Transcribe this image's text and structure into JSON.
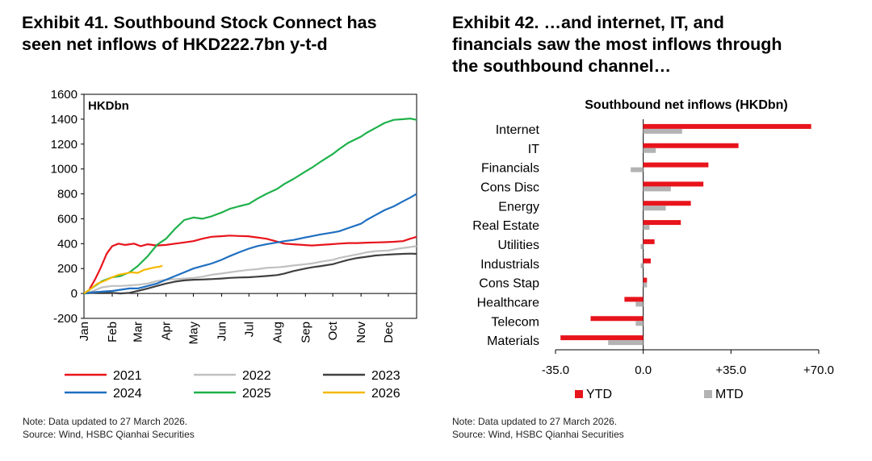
{
  "exhibit41": {
    "title_lines": [
      "Exhibit 41. Southbound Stock Connect has",
      "seen net inflows of HKD222.7bn y-t-d"
    ],
    "note": "Note: Data updated to 27 March 2026.",
    "source": "Source: Wind, HSBC Qianhai Securities"
  },
  "exhibit42": {
    "title_lines": [
      "Exhibit 42. …and internet, IT, and",
      "financials saw the most inflows through",
      "the southbound channel…"
    ],
    "note": "Note: Data updated to 27 March 2026.",
    "source": "Source: Wind, HSBC Qianhai Securities"
  },
  "chart_data": [
    {
      "type": "line",
      "title": "",
      "unit_label": "HKDbn",
      "xlabel": "",
      "ylabel": "HKDbn",
      "ylim": [
        -200,
        1600
      ],
      "yticks": [
        -200,
        0,
        200,
        400,
        600,
        800,
        1000,
        1200,
        1400,
        1600
      ],
      "x_domain_days": [
        0,
        365
      ],
      "x_ticks": [
        {
          "label": "Jan",
          "day": 0
        },
        {
          "label": "Feb",
          "day": 31
        },
        {
          "label": "Mar",
          "day": 59
        },
        {
          "label": "Apr",
          "day": 90
        },
        {
          "label": "May",
          "day": 120
        },
        {
          "label": "Jun",
          "day": 151
        },
        {
          "label": "Jul",
          "day": 181
        },
        {
          "label": "Aug",
          "day": 212
        },
        {
          "label": "Sep",
          "day": 243
        },
        {
          "label": "Oct",
          "day": 273
        },
        {
          "label": "Nov",
          "day": 304
        },
        {
          "label": "Dec",
          "day": 334
        }
      ],
      "series": [
        {
          "name": "2021",
          "color": "#e8141c",
          "points": [
            [
              0,
              0
            ],
            [
              5,
              20
            ],
            [
              12,
              110
            ],
            [
              18,
              200
            ],
            [
              25,
              320
            ],
            [
              31,
              380
            ],
            [
              38,
              400
            ],
            [
              45,
              390
            ],
            [
              50,
              395
            ],
            [
              55,
              400
            ],
            [
              62,
              380
            ],
            [
              70,
              395
            ],
            [
              80,
              385
            ],
            [
              90,
              390
            ],
            [
              100,
              400
            ],
            [
              110,
              410
            ],
            [
              120,
              420
            ],
            [
              130,
              440
            ],
            [
              140,
              455
            ],
            [
              150,
              460
            ],
            [
              160,
              465
            ],
            [
              170,
              462
            ],
            [
              180,
              460
            ],
            [
              190,
              450
            ],
            [
              200,
              440
            ],
            [
              210,
              420
            ],
            [
              220,
              400
            ],
            [
              230,
              395
            ],
            [
              240,
              390
            ],
            [
              250,
              385
            ],
            [
              260,
              390
            ],
            [
              270,
              395
            ],
            [
              280,
              400
            ],
            [
              290,
              405
            ],
            [
              300,
              405
            ],
            [
              310,
              408
            ],
            [
              320,
              410
            ],
            [
              330,
              412
            ],
            [
              340,
              415
            ],
            [
              350,
              420
            ],
            [
              358,
              440
            ],
            [
              365,
              455
            ]
          ]
        },
        {
          "name": "2022",
          "color": "#c0c0c0",
          "points": [
            [
              0,
              0
            ],
            [
              10,
              20
            ],
            [
              20,
              50
            ],
            [
              31,
              60
            ],
            [
              40,
              60
            ],
            [
              50,
              65
            ],
            [
              59,
              70
            ],
            [
              70,
              80
            ],
            [
              80,
              100
            ],
            [
              90,
              110
            ],
            [
              100,
              115
            ],
            [
              110,
              120
            ],
            [
              120,
              125
            ],
            [
              130,
              135
            ],
            [
              140,
              150
            ],
            [
              151,
              160
            ],
            [
              160,
              170
            ],
            [
              170,
              180
            ],
            [
              181,
              190
            ],
            [
              190,
              195
            ],
            [
              200,
              205
            ],
            [
              212,
              210
            ],
            [
              220,
              215
            ],
            [
              230,
              225
            ],
            [
              243,
              235
            ],
            [
              250,
              240
            ],
            [
              260,
              255
            ],
            [
              273,
              270
            ],
            [
              280,
              285
            ],
            [
              290,
              300
            ],
            [
              304,
              320
            ],
            [
              310,
              330
            ],
            [
              320,
              340
            ],
            [
              334,
              345
            ],
            [
              345,
              360
            ],
            [
              355,
              370
            ],
            [
              365,
              380
            ]
          ]
        },
        {
          "name": "2023",
          "color": "#404040",
          "points": [
            [
              0,
              0
            ],
            [
              10,
              5
            ],
            [
              20,
              10
            ],
            [
              31,
              5
            ],
            [
              40,
              0
            ],
            [
              50,
              5
            ],
            [
              59,
              20
            ],
            [
              70,
              40
            ],
            [
              80,
              60
            ],
            [
              90,
              80
            ],
            [
              100,
              95
            ],
            [
              110,
              105
            ],
            [
              120,
              110
            ],
            [
              130,
              112
            ],
            [
              140,
              115
            ],
            [
              151,
              120
            ],
            [
              160,
              125
            ],
            [
              170,
              128
            ],
            [
              181,
              130
            ],
            [
              190,
              135
            ],
            [
              200,
              140
            ],
            [
              212,
              148
            ],
            [
              220,
              160
            ],
            [
              230,
              180
            ],
            [
              243,
              200
            ],
            [
              250,
              210
            ],
            [
              260,
              220
            ],
            [
              273,
              235
            ],
            [
              280,
              250
            ],
            [
              290,
              270
            ],
            [
              300,
              285
            ],
            [
              310,
              295
            ],
            [
              320,
              305
            ],
            [
              330,
              310
            ],
            [
              340,
              315
            ],
            [
              350,
              318
            ],
            [
              358,
              320
            ],
            [
              365,
              318
            ]
          ]
        },
        {
          "name": "2024",
          "color": "#1f6fc0",
          "points": [
            [
              0,
              0
            ],
            [
              10,
              10
            ],
            [
              20,
              15
            ],
            [
              31,
              20
            ],
            [
              40,
              30
            ],
            [
              50,
              40
            ],
            [
              59,
              40
            ],
            [
              70,
              60
            ],
            [
              80,
              80
            ],
            [
              90,
              110
            ],
            [
              100,
              140
            ],
            [
              110,
              170
            ],
            [
              120,
              200
            ],
            [
              130,
              220
            ],
            [
              140,
              240
            ],
            [
              151,
              270
            ],
            [
              160,
              300
            ],
            [
              170,
              330
            ],
            [
              181,
              360
            ],
            [
              190,
              380
            ],
            [
              200,
              395
            ],
            [
              212,
              410
            ],
            [
              220,
              420
            ],
            [
              230,
              430
            ],
            [
              243,
              450
            ],
            [
              250,
              460
            ],
            [
              260,
              475
            ],
            [
              273,
              490
            ],
            [
              280,
              500
            ],
            [
              290,
              525
            ],
            [
              304,
              560
            ],
            [
              310,
              590
            ],
            [
              320,
              630
            ],
            [
              330,
              670
            ],
            [
              340,
              700
            ],
            [
              350,
              740
            ],
            [
              358,
              770
            ],
            [
              365,
              800
            ]
          ]
        },
        {
          "name": "2025",
          "color": "#1fb14a",
          "points": [
            [
              0,
              0
            ],
            [
              10,
              50
            ],
            [
              20,
              100
            ],
            [
              31,
              130
            ],
            [
              40,
              140
            ],
            [
              50,
              170
            ],
            [
              59,
              220
            ],
            [
              70,
              300
            ],
            [
              80,
              390
            ],
            [
              90,
              440
            ],
            [
              100,
              520
            ],
            [
              110,
              590
            ],
            [
              120,
              610
            ],
            [
              130,
              600
            ],
            [
              140,
              620
            ],
            [
              151,
              650
            ],
            [
              160,
              680
            ],
            [
              170,
              700
            ],
            [
              181,
              720
            ],
            [
              190,
              760
            ],
            [
              200,
              800
            ],
            [
              212,
              840
            ],
            [
              220,
              880
            ],
            [
              230,
              920
            ],
            [
              243,
              980
            ],
            [
              250,
              1010
            ],
            [
              260,
              1060
            ],
            [
              273,
              1120
            ],
            [
              280,
              1160
            ],
            [
              290,
              1210
            ],
            [
              304,
              1260
            ],
            [
              310,
              1290
            ],
            [
              320,
              1330
            ],
            [
              330,
              1370
            ],
            [
              340,
              1395
            ],
            [
              350,
              1400
            ],
            [
              358,
              1405
            ],
            [
              365,
              1395
            ]
          ]
        },
        {
          "name": "2026",
          "color": "#f5b800",
          "points": [
            [
              0,
              0
            ],
            [
              8,
              40
            ],
            [
              15,
              80
            ],
            [
              22,
              100
            ],
            [
              28,
              120
            ],
            [
              31,
              130
            ],
            [
              38,
              150
            ],
            [
              45,
              160
            ],
            [
              52,
              170
            ],
            [
              59,
              165
            ],
            [
              66,
              190
            ],
            [
              72,
              200
            ],
            [
              78,
              210
            ],
            [
              83,
              215
            ],
            [
              86,
              222.7
            ]
          ]
        }
      ]
    },
    {
      "type": "bar",
      "orientation": "horizontal",
      "title": "Southbound net inflows (HKDbn)",
      "xlim": [
        -35,
        70
      ],
      "xticks": [
        {
          "value": -35,
          "label": "-35.0"
        },
        {
          "value": 0,
          "label": "0.0"
        },
        {
          "value": 35,
          "label": "+35.0"
        },
        {
          "value": 70,
          "label": "+70.0"
        }
      ],
      "categories": [
        "Internet",
        "IT",
        "Financials",
        "Cons Disc",
        "Energy",
        "Real Estate",
        "Utilities",
        "Industrials",
        "Cons Stap",
        "Healthcare",
        "Telecom",
        "Materials"
      ],
      "series": [
        {
          "name": "YTD",
          "color": "#e8141c",
          "values": [
            67,
            38,
            26,
            24,
            19,
            15,
            4.5,
            3,
            1.5,
            -7.5,
            -21,
            -33
          ]
        },
        {
          "name": "MTD",
          "color": "#b3b3b3",
          "values": [
            15.5,
            5,
            -5,
            11,
            9,
            2.5,
            -1,
            -1,
            1.5,
            -3,
            -3,
            -14
          ]
        }
      ]
    }
  ]
}
